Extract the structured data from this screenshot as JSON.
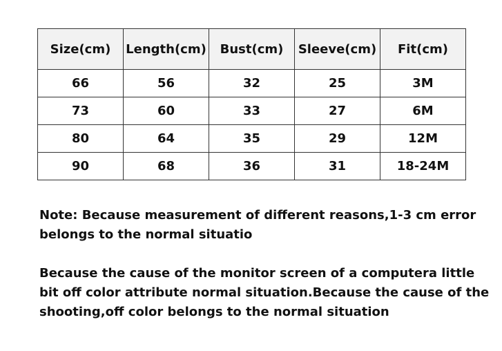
{
  "table": {
    "header": [
      "Size(cm)",
      "Length(cm)",
      "Bust(cm)",
      "Sleeve(cm)",
      "Fit(cm)"
    ],
    "rows": [
      [
        "66",
        "56",
        "32",
        "25",
        "3M"
      ],
      [
        "73",
        "60",
        "33",
        "27",
        "6M"
      ],
      [
        "80",
        "64",
        "35",
        "29",
        "12M"
      ],
      [
        "90",
        "68",
        "36",
        "31",
        "18-24M"
      ]
    ]
  },
  "notes": [
    [
      "Note: Because measurement of different reasons,1-3 cm error",
      "belongs to the normal situatio"
    ],
    [
      "Because the cause of the monitor screen of a computera little",
      "bit off color attribute normal situation.Because the cause of the",
      "shooting,off color belongs to the normal situation"
    ]
  ]
}
